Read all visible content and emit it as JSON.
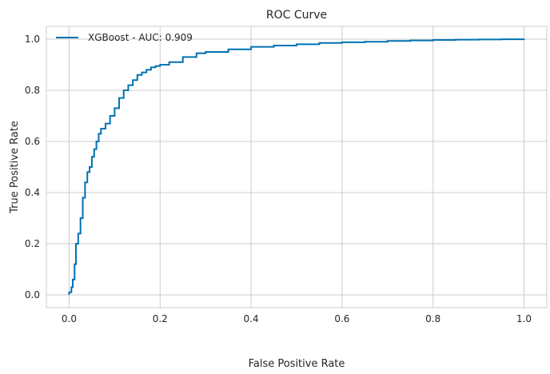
{
  "chart_data": {
    "type": "line",
    "title": "ROC Curve",
    "xlabel": "False Positive Rate",
    "ylabel": "True Positive Rate",
    "xlim": [
      -0.05,
      1.05
    ],
    "ylim": [
      -0.05,
      1.05
    ],
    "xticks": [
      0.0,
      0.2,
      0.4,
      0.6,
      0.8,
      1.0
    ],
    "yticks": [
      0.0,
      0.2,
      0.4,
      0.6,
      0.8,
      1.0
    ],
    "xtick_labels": [
      "0.0",
      "0.2",
      "0.4",
      "0.6",
      "0.8",
      "1.0"
    ],
    "ytick_labels": [
      "0.0",
      "0.2",
      "0.4",
      "0.6",
      "0.8",
      "1.0"
    ],
    "grid": true,
    "legend_position": "top-left",
    "series": [
      {
        "name": "XGBoost - AUC: 0.909",
        "color": "#0072b2",
        "x": [
          0.0,
          0.0,
          0.005,
          0.008,
          0.012,
          0.015,
          0.02,
          0.025,
          0.03,
          0.035,
          0.04,
          0.045,
          0.05,
          0.055,
          0.06,
          0.065,
          0.07,
          0.08,
          0.09,
          0.1,
          0.11,
          0.12,
          0.13,
          0.14,
          0.15,
          0.16,
          0.17,
          0.18,
          0.19,
          0.2,
          0.22,
          0.25,
          0.28,
          0.3,
          0.35,
          0.4,
          0.45,
          0.5,
          0.55,
          0.6,
          0.65,
          0.7,
          0.75,
          0.8,
          0.85,
          0.9,
          0.95,
          1.0
        ],
        "y": [
          0.0,
          0.01,
          0.03,
          0.06,
          0.12,
          0.2,
          0.24,
          0.3,
          0.38,
          0.44,
          0.48,
          0.5,
          0.54,
          0.57,
          0.6,
          0.63,
          0.65,
          0.67,
          0.7,
          0.73,
          0.77,
          0.8,
          0.82,
          0.84,
          0.86,
          0.87,
          0.88,
          0.89,
          0.895,
          0.9,
          0.91,
          0.93,
          0.945,
          0.95,
          0.96,
          0.97,
          0.975,
          0.98,
          0.985,
          0.988,
          0.99,
          0.993,
          0.995,
          0.997,
          0.998,
          0.999,
          0.9995,
          1.0
        ]
      }
    ]
  }
}
